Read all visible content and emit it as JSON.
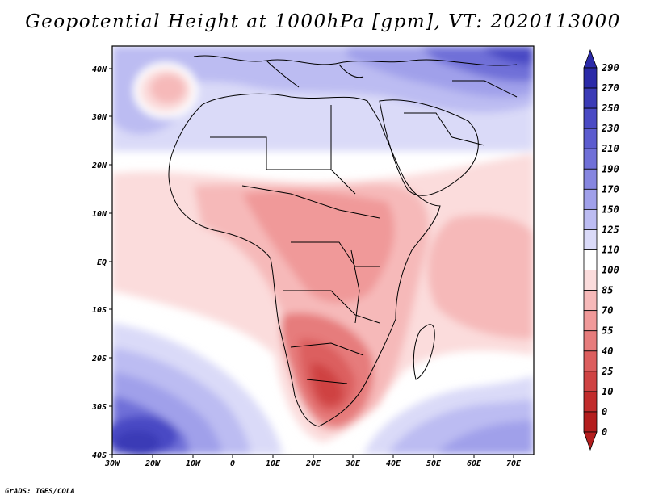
{
  "title": "Geopotential Height at 1000hPa [gpm], VT: 2020113000",
  "credit": "GrADS: IGES/COLA",
  "colorbar": {
    "labels": [
      "290",
      "270",
      "250",
      "230",
      "210",
      "190",
      "170",
      "150",
      "125",
      "110",
      "100",
      "85",
      "70",
      "55",
      "40",
      "25",
      "10",
      "0"
    ],
    "colors": [
      "#2b2aa8",
      "#3b3bb6",
      "#4a4ac4",
      "#5c5ccf",
      "#7070d8",
      "#8686e0",
      "#a0a0ea",
      "#bcbcf2",
      "#dadaf8",
      "#ffffff",
      "#fbdcdc",
      "#f6b9b9",
      "#f09999",
      "#e67c7c",
      "#dc5e5e",
      "#cf4343",
      "#c12c2c",
      "#b31d1d"
    ]
  },
  "axes": {
    "lon_labels": [
      "30W",
      "20W",
      "10W",
      "0",
      "10E",
      "20E",
      "30E",
      "40E",
      "50E",
      "60E",
      "70E"
    ],
    "lat_labels": [
      "40N",
      "30N",
      "20N",
      "10N",
      "EQ",
      "10S",
      "20S",
      "30S",
      "40S"
    ]
  },
  "map": {
    "region": "Africa",
    "lon_range": [
      -30,
      75
    ],
    "lat_range": [
      -40,
      45
    ],
    "field_colors": {
      "low_red": "#c12c2c",
      "mid_red": "#e67c7c",
      "pink": "#f6b9b9",
      "light_pink": "#fbdcdc",
      "white": "#ffffff",
      "light_blue": "#dadaf8",
      "blue": "#a0a0ea",
      "deep_blue": "#4a4ac4"
    }
  }
}
